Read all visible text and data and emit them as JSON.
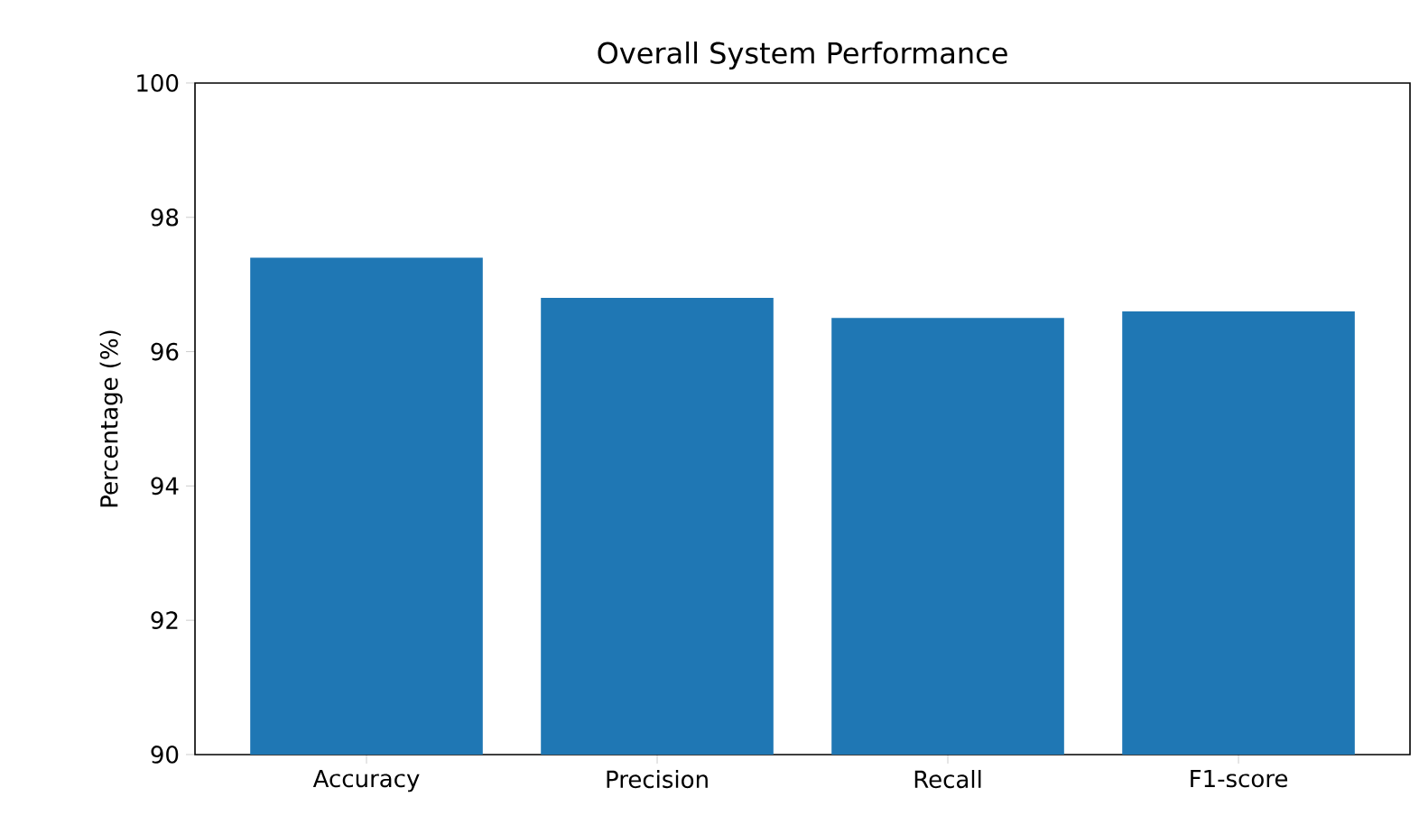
{
  "chart_data": {
    "type": "bar",
    "title": "Overall System Performance",
    "ylabel": "Percentage (%)",
    "categories": [
      "Accuracy",
      "Precision",
      "Recall",
      "F1-score"
    ],
    "values": [
      97.4,
      96.8,
      96.5,
      96.6
    ],
    "color": "#1f77b4",
    "ylim": [
      90,
      100
    ],
    "yticks": [
      90,
      92,
      94,
      96,
      98,
      100
    ],
    "grid": false
  }
}
